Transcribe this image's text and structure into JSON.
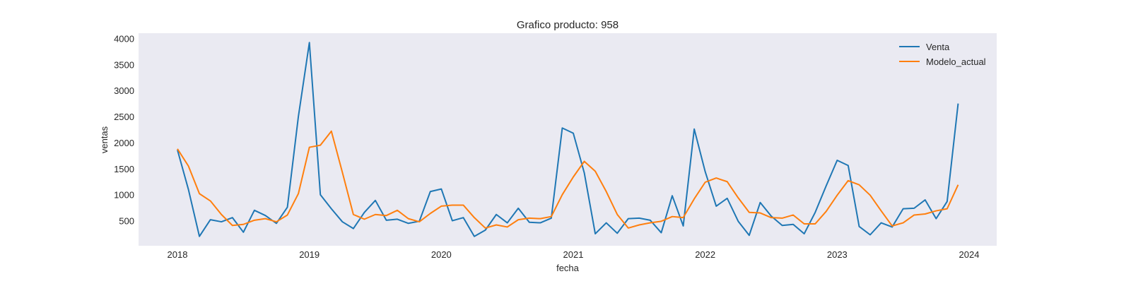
{
  "chart_data": {
    "type": "line",
    "title": "Grafico producto: 958",
    "xlabel": "fecha",
    "ylabel": "ventas",
    "x_start": "2018-01",
    "x_ticks": [
      "2018",
      "2019",
      "2020",
      "2021",
      "2022",
      "2023",
      "2024"
    ],
    "y_ticks": [
      500,
      1000,
      1500,
      2000,
      2500,
      3000,
      3500,
      4000
    ],
    "ylim": [
      20,
      4100
    ],
    "grid": false,
    "background": "#eaeaf2",
    "legend_position": "top-right",
    "series": [
      {
        "name": "Venta",
        "color": "#1f77b4",
        "values": [
          1860,
          1100,
          200,
          520,
          480,
          560,
          280,
          700,
          600,
          450,
          760,
          2500,
          3920,
          1000,
          730,
          480,
          350,
          660,
          890,
          510,
          530,
          450,
          490,
          1060,
          1110,
          500,
          560,
          200,
          320,
          620,
          460,
          740,
          470,
          460,
          550,
          2280,
          2180,
          1420,
          250,
          460,
          260,
          540,
          550,
          510,
          270,
          980,
          400,
          2260,
          1440,
          780,
          930,
          490,
          220,
          850,
          590,
          410,
          430,
          250,
          660,
          1170,
          1660,
          1560,
          390,
          230,
          460,
          380,
          730,
          740,
          900,
          540,
          870,
          2750
        ]
      },
      {
        "name": "Modelo_actual",
        "color": "#ff7f0e",
        "values": [
          1880,
          1550,
          1020,
          880,
          620,
          410,
          430,
          510,
          540,
          480,
          610,
          1020,
          1910,
          1950,
          2220,
          1430,
          620,
          530,
          620,
          600,
          700,
          540,
          480,
          640,
          780,
          800,
          800,
          560,
          360,
          420,
          380,
          520,
          550,
          540,
          580,
          1000,
          1340,
          1640,
          1450,
          1060,
          620,
          360,
          420,
          460,
          490,
          580,
          560,
          920,
          1240,
          1320,
          1250,
          940,
          660,
          650,
          560,
          550,
          610,
          440,
          440,
          680,
          990,
          1270,
          1190,
          990,
          690,
          400,
          460,
          610,
          630,
          690,
          730,
          1190
        ]
      }
    ]
  }
}
